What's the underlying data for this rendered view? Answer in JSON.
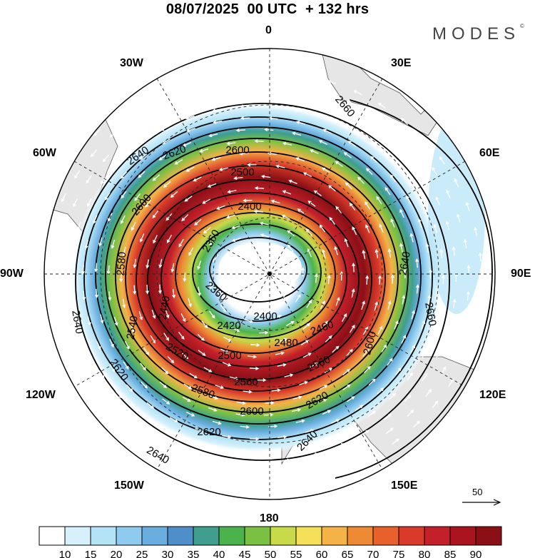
{
  "title": "08/07/2025  00 UTC  + 132 hrs",
  "brand": "MODES",
  "brand_mark": "©",
  "longitude_labels": {
    "top": "0",
    "right30": "30E",
    "right60": "60E",
    "right90": "90E",
    "right120": "120E",
    "right150": "150E",
    "bottom": "180",
    "left150": "150W",
    "left120": "120W",
    "left90": "90W",
    "left60": "60W",
    "left30": "30W"
  },
  "contours": [
    {
      "label": "2360",
      "text": "2360"
    },
    {
      "label": "2400",
      "text": "2400"
    },
    {
      "label": "2420",
      "text": "2420"
    },
    {
      "label": "2440",
      "text": "2440"
    },
    {
      "label": "2460",
      "text": "2460"
    },
    {
      "label": "2480",
      "text": "2480"
    },
    {
      "label": "2500",
      "text": "2500"
    },
    {
      "label": "2520",
      "text": "2520"
    },
    {
      "label": "2540",
      "text": "2540"
    },
    {
      "label": "2560",
      "text": "2560"
    },
    {
      "label": "2580",
      "text": "2580"
    },
    {
      "label": "2600",
      "text": "2600"
    },
    {
      "label": "2620",
      "text": "2620"
    },
    {
      "label": "2640",
      "text": "2640"
    },
    {
      "label": "2660",
      "text": "2660"
    }
  ],
  "vector_reference": "50",
  "colorbar": {
    "ticks": [
      "10",
      "15",
      "20",
      "25",
      "30",
      "35",
      "40",
      "45",
      "50",
      "55",
      "60",
      "65",
      "70",
      "75",
      "80",
      "85",
      "90"
    ],
    "colors": [
      "#ffffff",
      "#d6f1fb",
      "#b3e3f7",
      "#8ecbef",
      "#6aaee0",
      "#4f8fc9",
      "#3f9e8e",
      "#4cb34c",
      "#7ac143",
      "#c8d94a",
      "#f6e05a",
      "#f4b247",
      "#ef8a34",
      "#e8602b",
      "#d93a2a",
      "#c4202a",
      "#a9141e",
      "#8b1016"
    ]
  }
}
